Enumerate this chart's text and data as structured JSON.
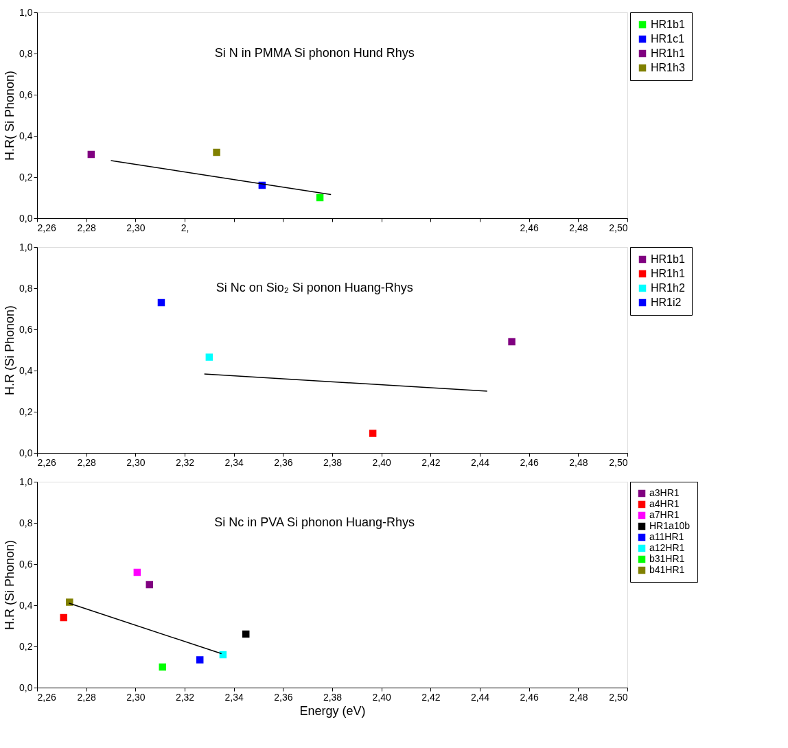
{
  "chart_data": [
    {
      "type": "scatter",
      "title": "Si N in PMMA Si phonon Hund Rhys",
      "ylabel": "H.R( Si Phonon)",
      "marker": "square",
      "legend": "right",
      "grid": false,
      "xlim": [
        2.26,
        2.5
      ],
      "ylim": [
        0,
        1
      ],
      "yticks": [
        {
          "value": 0,
          "label": "0,0"
        },
        {
          "value": 0.2,
          "label": "0,2"
        },
        {
          "value": 0.4,
          "label": "0,4"
        },
        {
          "value": 0.6,
          "label": "0,6"
        },
        {
          "value": 0.8,
          "label": "0,8"
        },
        {
          "value": 1,
          "label": "1,0"
        }
      ],
      "xticks": [
        {
          "value": 2.26,
          "label": "2,26"
        },
        {
          "value": 2.28,
          "label": "2,28"
        },
        {
          "value": 2.3,
          "label": "2,30"
        },
        {
          "value": 2.32,
          "label": "2,"
        },
        {
          "value": 2.34,
          "label": null
        },
        {
          "value": 2.36,
          "label": null
        },
        {
          "value": 2.38,
          "label": null
        },
        {
          "value": 2.4,
          "label": null
        },
        {
          "value": 2.42,
          "label": null
        },
        {
          "value": 2.44,
          "label": null
        },
        {
          "value": 2.46,
          "label": "2,46"
        },
        {
          "value": 2.48,
          "label": "2,48"
        },
        {
          "value": 2.5,
          "label": "2,50"
        }
      ],
      "series": [
        {
          "name": "HR1b1",
          "color": "#00ff00",
          "x": [
            2.375
          ],
          "values": [
            0.1
          ]
        },
        {
          "name": "HR1c1",
          "color": "#0000ff",
          "x": [
            2.3515
          ],
          "values": [
            0.16
          ]
        },
        {
          "name": "HR1h1",
          "color": "#800080",
          "x": [
            2.282
          ],
          "values": [
            0.31
          ]
        },
        {
          "name": "HR1h3",
          "color": "#808000",
          "x": [
            2.333
          ],
          "values": [
            0.32
          ]
        },
        {
          "type": "line",
          "marker": "none",
          "color": "#000000",
          "x": [
            2.29,
            2.3795
          ],
          "values": [
            0.28,
            0.115
          ]
        }
      ]
    },
    {
      "type": "scatter",
      "title": "Si Nc on Sio₂ Si ponon Huang-Rhys",
      "ylabel": "H.R (Si Phonon)",
      "marker": "square",
      "legend": "right",
      "grid": false,
      "xlim": [
        2.26,
        2.5
      ],
      "ylim": [
        0,
        1
      ],
      "yticks": [
        {
          "value": 0,
          "label": "0,0"
        },
        {
          "value": 0.2,
          "label": "0,2"
        },
        {
          "value": 0.4,
          "label": "0,4"
        },
        {
          "value": 0.6,
          "label": "0,6"
        },
        {
          "value": 0.8,
          "label": "0,8"
        },
        {
          "value": 1,
          "label": "1,0"
        }
      ],
      "xticks": [
        {
          "value": 2.26,
          "label": "2,26"
        },
        {
          "value": 2.28,
          "label": "2,28"
        },
        {
          "value": 2.3,
          "label": "2,30"
        },
        {
          "value": 2.32,
          "label": "2,32"
        },
        {
          "value": 2.34,
          "label": "2,34"
        },
        {
          "value": 2.36,
          "label": "2,36"
        },
        {
          "value": 2.38,
          "label": "2,38"
        },
        {
          "value": 2.4,
          "label": "2,40"
        },
        {
          "value": 2.42,
          "label": "2,42"
        },
        {
          "value": 2.44,
          "label": "2,44"
        },
        {
          "value": 2.46,
          "label": "2,46"
        },
        {
          "value": 2.48,
          "label": "2,48"
        },
        {
          "value": 2.5,
          "label": "2,50"
        }
      ],
      "series": [
        {
          "name": "HR1b1",
          "color": "#800080",
          "x": [
            2.453
          ],
          "values": [
            0.54
          ]
        },
        {
          "name": "HR1h1",
          "color": "#ff0000",
          "x": [
            2.3965
          ],
          "values": [
            0.095
          ]
        },
        {
          "name": "HR1h2",
          "color": "#00ffff",
          "x": [
            2.33
          ],
          "values": [
            0.465
          ]
        },
        {
          "name": "HR1i2",
          "color": "#0000ff",
          "x": [
            2.3105
          ],
          "values": [
            0.73
          ]
        },
        {
          "type": "line",
          "marker": "none",
          "color": "#000000",
          "x": [
            2.328,
            2.443
          ],
          "values": [
            0.383,
            0.3
          ]
        }
      ]
    },
    {
      "type": "scatter",
      "title": "Si Nc in PVA Si phonon Huang-Rhys",
      "xlabel": "Energy (eV)",
      "ylabel": "H.R (Si Phonon)",
      "marker": "square",
      "legend": "right",
      "grid": false,
      "xlim": [
        2.26,
        2.5
      ],
      "ylim": [
        0,
        1
      ],
      "yticks": [
        {
          "value": 0,
          "label": "0,0"
        },
        {
          "value": 0.2,
          "label": "0,2"
        },
        {
          "value": 0.4,
          "label": "0,4"
        },
        {
          "value": 0.6,
          "label": "0,6"
        },
        {
          "value": 0.8,
          "label": "0,8"
        },
        {
          "value": 1,
          "label": "1,0"
        }
      ],
      "xticks": [
        {
          "value": 2.26,
          "label": "2,26"
        },
        {
          "value": 2.28,
          "label": "2,28"
        },
        {
          "value": 2.3,
          "label": "2,30"
        },
        {
          "value": 2.32,
          "label": "2,32"
        },
        {
          "value": 2.34,
          "label": "2,34"
        },
        {
          "value": 2.36,
          "label": "2,36"
        },
        {
          "value": 2.38,
          "label": "2,38"
        },
        {
          "value": 2.4,
          "label": "2,40"
        },
        {
          "value": 2.42,
          "label": "2,42"
        },
        {
          "value": 2.44,
          "label": "2,44"
        },
        {
          "value": 2.46,
          "label": "2,46"
        },
        {
          "value": 2.48,
          "label": "2,48"
        },
        {
          "value": 2.5,
          "label": "2,50"
        }
      ],
      "series": [
        {
          "name": "a3HR1",
          "color": "#800080",
          "x": [
            2.3057
          ],
          "values": [
            0.5
          ]
        },
        {
          "name": "a4HR1",
          "color": "#ff0000",
          "x": [
            2.2708
          ],
          "values": [
            0.34
          ]
        },
        {
          "name": "a7HR1",
          "color": "#ff00ff",
          "x": [
            2.3007
          ],
          "values": [
            0.56
          ]
        },
        {
          "name": "HR1a10b",
          "color": "#000000",
          "x": [
            2.3449
          ],
          "values": [
            0.26
          ]
        },
        {
          "name": "a11HR1",
          "color": "#0000ff",
          "x": [
            2.3262
          ],
          "values": [
            0.135
          ]
        },
        {
          "name": "a12HR1",
          "color": "#00ffff",
          "x": [
            2.3356
          ],
          "values": [
            0.16
          ]
        },
        {
          "name": "b31HR1",
          "color": "#00ff00",
          "x": [
            2.311
          ],
          "values": [
            0.1
          ]
        },
        {
          "name": "b41HR1",
          "color": "#808000",
          "x": [
            2.2732
          ],
          "values": [
            0.415
          ]
        },
        {
          "type": "line",
          "marker": "none",
          "color": "#000000",
          "x": [
            2.273,
            2.335
          ],
          "values": [
            0.41,
            0.165
          ]
        }
      ]
    }
  ]
}
